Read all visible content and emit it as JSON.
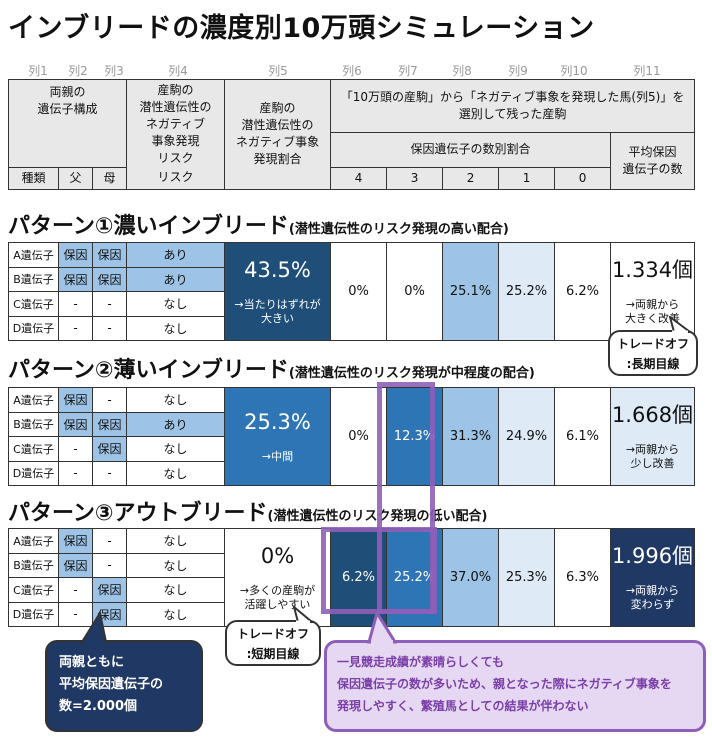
{
  "title": "インブリードの濃度別10万頭シミュレーション",
  "column_numbers": [
    "列1",
    "列2",
    "列3",
    "列4",
    "列5",
    "列6",
    "列7",
    "列8",
    "列9",
    "列10",
    "列11"
  ],
  "header": {
    "parents_gene": "両親の\n遺伝子構成",
    "risk": "産駒の\n潜性遺伝性の\nネガティブ\n事象発現\nリスク",
    "rate": "産駒の\n潜性遺伝性の\nネガティブ事象\n発現割合",
    "remain": "「10万頭の産駒」から「ネガティブ事象を発現した馬(列5)」を\n選別して残った産駒",
    "dist": "保因遺伝子の数別割合",
    "avg": "平均保因\n遺伝子の数",
    "kind": "種類",
    "father": "父",
    "mother": "母",
    "risk_tail": "リスク",
    "counts": [
      "4",
      "3",
      "2",
      "1",
      "0"
    ]
  },
  "patterns": [
    {
      "title": "パターン①濃いインブリード",
      "subtitle": "(潜性遺伝性のリスク発現の高い配合)",
      "rows": [
        {
          "gene": "A遺伝子",
          "father": "保因",
          "mother": "保因",
          "risk": "あり"
        },
        {
          "gene": "B遺伝子",
          "father": "保因",
          "mother": "保因",
          "risk": "あり"
        },
        {
          "gene": "C遺伝子",
          "father": "-",
          "mother": "-",
          "risk": "なし"
        },
        {
          "gene": "D遺伝子",
          "father": "-",
          "mother": "-",
          "risk": "なし"
        }
      ],
      "rate_main": "43.5%",
      "rate_sub": "→当たりはずれが\n大きい",
      "dist": [
        "0%",
        "0%",
        "25.1%",
        "25.2%",
        "6.2%"
      ],
      "avg_main": "1.334個",
      "avg_sub": "→両親から\n大きく改善"
    },
    {
      "title": "パターン②薄いインブリード",
      "subtitle": "(潜性遺伝性のリスク発現が中程度の配合)",
      "rows": [
        {
          "gene": "A遺伝子",
          "father": "保因",
          "mother": "-",
          "risk": "なし"
        },
        {
          "gene": "B遺伝子",
          "father": "保因",
          "mother": "保因",
          "risk": "あり"
        },
        {
          "gene": "C遺伝子",
          "father": "-",
          "mother": "保因",
          "risk": "なし"
        },
        {
          "gene": "D遺伝子",
          "father": "-",
          "mother": "-",
          "risk": "なし"
        }
      ],
      "rate_main": "25.3%",
      "rate_sub": "→中間",
      "dist": [
        "0%",
        "12.3%",
        "31.3%",
        "24.9%",
        "6.1%"
      ],
      "avg_main": "1.668個",
      "avg_sub": "→両親から\n少し改善"
    },
    {
      "title": "パターン③アウトブリード",
      "subtitle": "(潜性遺伝性のリスク発現の低い配合)",
      "rows": [
        {
          "gene": "A遺伝子",
          "father": "保因",
          "mother": "-",
          "risk": "なし"
        },
        {
          "gene": "B遺伝子",
          "father": "保因",
          "mother": "-",
          "risk": "なし"
        },
        {
          "gene": "C遺伝子",
          "father": "-",
          "mother": "保因",
          "risk": "なし"
        },
        {
          "gene": "D遺伝子",
          "father": "-",
          "mother": "保因",
          "risk": "なし"
        }
      ],
      "rate_main": "0%",
      "rate_sub": "→多くの産駒が\n活躍しやすい",
      "dist": [
        "6.2%",
        "25.2%",
        "37.0%",
        "25.3%",
        "6.3%"
      ],
      "avg_main": "1.996個",
      "avg_sub": "→両親から\n変わらず"
    }
  ],
  "callouts": {
    "tradeoff_long": "トレードオフ\n:長期目線",
    "tradeoff_short": "トレードオフ\n:短期目線",
    "parents_avg": "両親ともに\n平均保因遺伝子の\n数=2.000個",
    "note": "一見競走成績が素晴らしくても\n保因遺伝子の数が多いため、親となった際にネガティブ事象を\n発現しやすく、繁殖馬としての結果が伴わない"
  },
  "colors": {
    "header_gray": "#e8e8e8",
    "light_blue": "#9dc3e6",
    "pale_blue": "#deebf7",
    "mid_blue": "#2e75b6",
    "dark_navy": "#1f4e79",
    "navy_box": "#203864",
    "purple": "#8e5fb8",
    "lavender": "#e6d8f2"
  }
}
